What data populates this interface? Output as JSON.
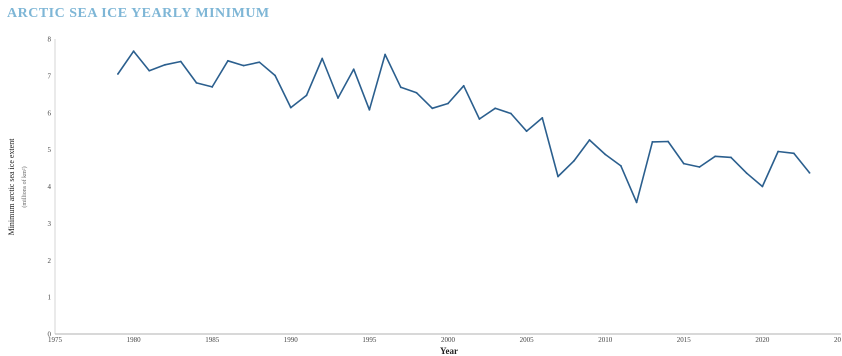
{
  "chart_data": {
    "type": "line",
    "title": "ARCTIC SEA ICE YEARLY MINIMUM",
    "xlabel": "Year",
    "ylabel": "Minimum arctic sea ice extent",
    "ylabel_unit": "(millions of km²)",
    "xlim": [
      1975,
      2025
    ],
    "ylim": [
      0,
      8
    ],
    "x_ticks": [
      "1975",
      "1980",
      "1985",
      "1990",
      "1995",
      "2000",
      "2005",
      "2010",
      "2015",
      "2020",
      "20"
    ],
    "y_ticks": [
      "0",
      "1",
      "2",
      "3",
      "4",
      "5",
      "6",
      "7",
      "8"
    ],
    "grid": false,
    "line_color": "#2b5f8e",
    "series": [
      {
        "x": [
          1979,
          1980,
          1981,
          1982,
          1983,
          1984,
          1985,
          1986,
          1987,
          1988,
          1989,
          1990,
          1991,
          1992,
          1993,
          1994,
          1995,
          1996,
          1997,
          1998,
          1999,
          2000,
          2001,
          2002,
          2003,
          2004,
          2005,
          2006,
          2007,
          2008,
          2009,
          2010,
          2011,
          2012,
          2013,
          2014,
          2015,
          2016,
          2017,
          2018,
          2019,
          2020,
          2021,
          2022,
          2023
        ],
        "y": [
          7.05,
          7.67,
          7.14,
          7.3,
          7.39,
          6.81,
          6.7,
          7.41,
          7.28,
          7.37,
          7.01,
          6.14,
          6.47,
          7.47,
          6.4,
          7.18,
          6.08,
          7.58,
          6.69,
          6.54,
          6.12,
          6.25,
          6.73,
          5.83,
          6.12,
          5.98,
          5.5,
          5.86,
          4.27,
          4.69,
          5.26,
          4.87,
          4.56,
          3.57,
          5.21,
          5.22,
          4.62,
          4.53,
          4.82,
          4.79,
          4.36,
          4.0,
          4.95,
          4.9,
          4.37
        ]
      }
    ]
  }
}
